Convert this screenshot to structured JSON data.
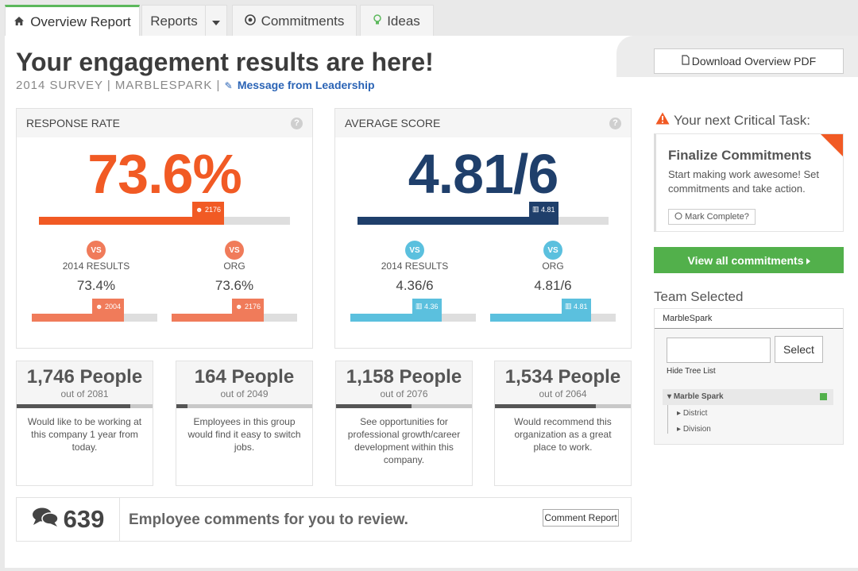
{
  "tabs": {
    "overview": "Overview Report",
    "reports": "Reports",
    "commitments": "Commitments",
    "ideas": "Ideas"
  },
  "header": {
    "title": "Your engagement results are here!",
    "survey": "2014 SURVEY | MARBLESPARK |",
    "leadership": "Message from Leadership",
    "download": "Download Overview PDF"
  },
  "response": {
    "label": "RESPONSE RATE",
    "value": "73.6%",
    "percent": 73.6,
    "flag": "2176",
    "vs": "VS",
    "compare": [
      {
        "label": "2014 RESULTS",
        "value": "73.4%",
        "percent": 73.4,
        "flag": "2004"
      },
      {
        "label": "ORG",
        "value": "73.6%",
        "percent": 73.6,
        "flag": "2176"
      }
    ]
  },
  "average": {
    "label": "AVERAGE SCORE",
    "value": "4.81/6",
    "score": 4.81,
    "max": 6,
    "flag": "4.81",
    "vs": "VS",
    "compare": [
      {
        "label": "2014 RESULTS",
        "value": "4.36/6",
        "score": 4.36,
        "flag": "4.36"
      },
      {
        "label": "ORG",
        "value": "4.81/6",
        "score": 4.81,
        "flag": "4.81"
      }
    ]
  },
  "people": [
    {
      "count": "1,746 People",
      "out": "out of 2081",
      "ratio": 0.839,
      "desc": "Would like to be working at this company 1 year from today."
    },
    {
      "count": "164 People",
      "out": "out of 2049",
      "ratio": 0.08,
      "desc": "Employees in this group would find it easy to switch jobs."
    },
    {
      "count": "1,158 People",
      "out": "out of 2076",
      "ratio": 0.558,
      "desc": "See opportunities for professional growth/career development within this company."
    },
    {
      "count": "1,534 People",
      "out": "out of 2064",
      "ratio": 0.743,
      "desc": "Would recommend this organization as a great place to work."
    }
  ],
  "comments": {
    "count": "639",
    "text": "Employee comments for you to review.",
    "button": "Comment Report"
  },
  "task": {
    "heading": "Your next Critical Task:",
    "title": "Finalize Commitments",
    "desc": "Start making work awesome! Set commitments and take action.",
    "mark": "Mark Complete?"
  },
  "view_all": "View all commitments",
  "team": {
    "heading": "Team Selected",
    "name": "MarbleSpark",
    "select": "Select",
    "hide": "Hide Tree List",
    "root": "Marble Spark",
    "children": [
      "District",
      "Division"
    ]
  },
  "colors": {
    "orange": "#f15a24",
    "salmon": "#f07b5a",
    "navy": "#1f3f6b",
    "sky": "#5bc0de",
    "green": "#52b04b"
  }
}
